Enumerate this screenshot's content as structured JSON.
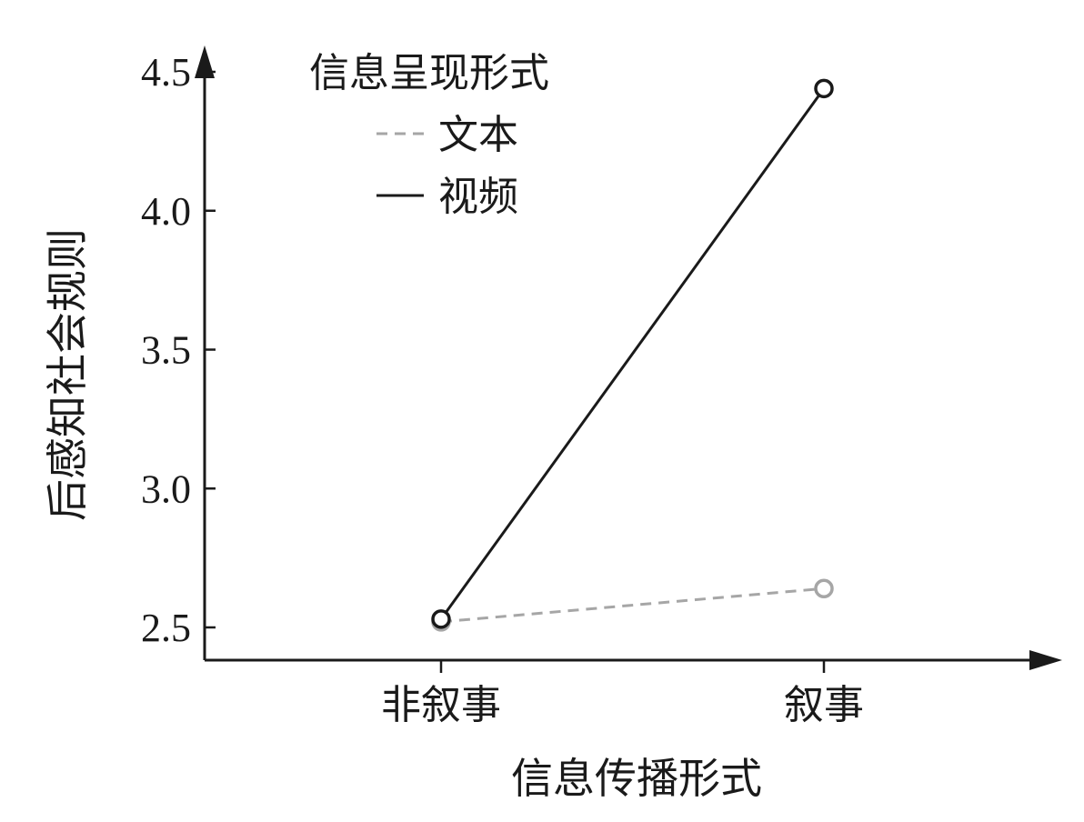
{
  "chart_data": {
    "type": "line",
    "xlabel": "信息传播形式",
    "ylabel": "后感知社会规则",
    "categories": [
      "非叙事",
      "叙事"
    ],
    "ylim": [
      2.4,
      4.55
    ],
    "yticks": [
      "2.5",
      "3.0",
      "3.5",
      "4.0",
      "4.5"
    ],
    "ytick_values": [
      2.5,
      3.0,
      3.5,
      4.0,
      4.5
    ],
    "legend": {
      "title": "信息呈现形式",
      "position": "top-left"
    },
    "series": [
      {
        "name": "文本",
        "values": [
          2.52,
          2.64
        ],
        "color": "#a6a6a6",
        "style": "dashed"
      },
      {
        "name": "视频",
        "values": [
          2.53,
          4.44
        ],
        "color": "#1a1a1a",
        "style": "solid"
      }
    ],
    "grid": false
  }
}
